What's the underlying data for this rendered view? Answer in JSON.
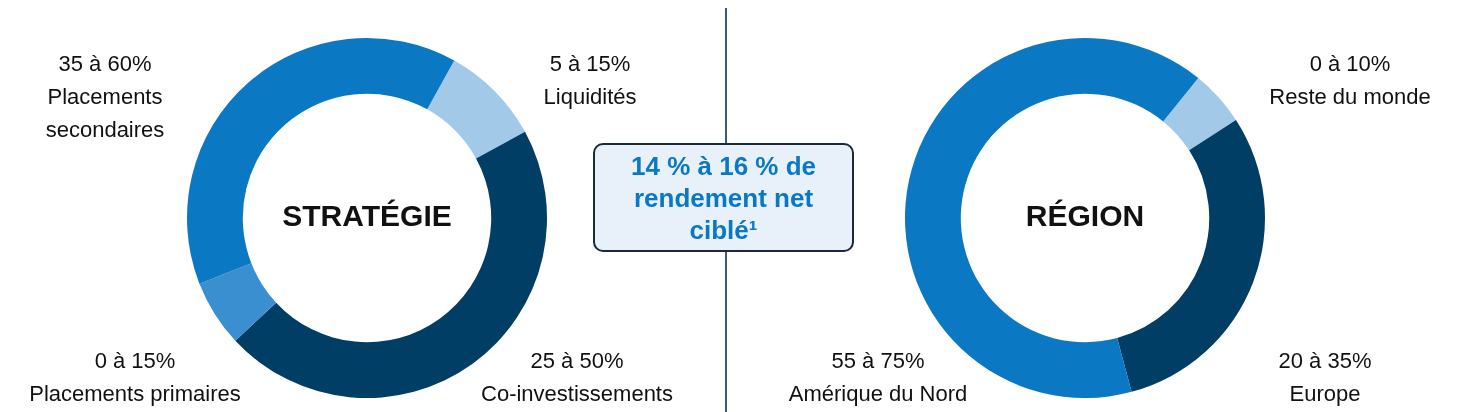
{
  "chart_data": [
    {
      "type": "donut",
      "title": "STRATÉGIE",
      "categories": [
        "Liquidités",
        "Co-investissements",
        "Placements primaires",
        "Placements secondaires"
      ],
      "values": [
        9,
        46,
        6,
        39
      ],
      "colors": [
        "#a3c9e8",
        "#003e66",
        "#3a8fd0",
        "#0a78c2"
      ],
      "annotations": [
        "5 à 15%",
        "25 à 50%",
        "0 à 15%",
        "35 à 60%"
      ]
    },
    {
      "type": "other",
      "title": "14 % à 16 % de rendement net ciblé¹"
    },
    {
      "type": "donut",
      "title": "RÉGION",
      "categories": [
        "Reste du monde",
        "Europe",
        "Amérique du Nord"
      ],
      "values": [
        5,
        30,
        65
      ],
      "colors": [
        "#a3c9e8",
        "#003e66",
        "#0a78c2"
      ],
      "annotations": [
        "0 à 10%",
        "20 à 35%",
        "55 à 75%"
      ]
    }
  ]
}
